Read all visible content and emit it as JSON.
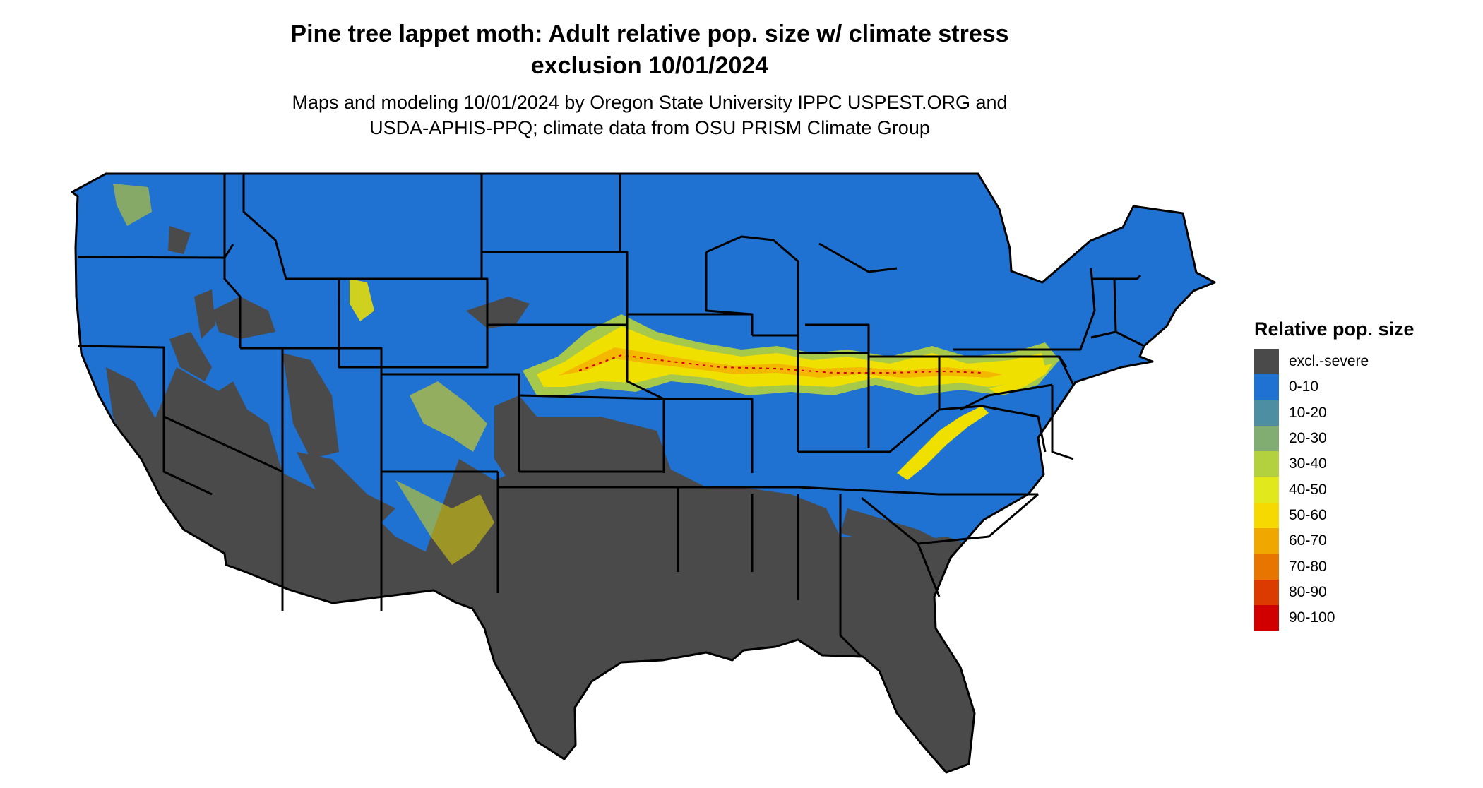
{
  "title": {
    "line1": "Pine tree lappet moth: Adult relative pop. size w/ climate stress",
    "line2": "exclusion 10/01/2024"
  },
  "subtitle": {
    "line1": "Maps and modeling 10/01/2024 by Oregon State University IPPC USPEST.ORG and",
    "line2": "USDA-APHIS-PPQ; climate data from OSU PRISM Climate Group"
  },
  "map": {
    "colors": {
      "excluded": "#4a4a4a",
      "low": "#1f72d1",
      "band_outer": "#b5d23c",
      "band_mid": "#f0e000",
      "band_core": "#f5b800",
      "band_hot": "#d40000",
      "borders": "#000000"
    }
  },
  "legend": {
    "title": "Relative pop. size",
    "items": [
      {
        "label": "excl.-severe",
        "color": "#4a4a4a"
      },
      {
        "label": "0-10",
        "color": "#1f72d1"
      },
      {
        "label": "10-20",
        "color": "#4d8ea3"
      },
      {
        "label": "20-30",
        "color": "#82ad72"
      },
      {
        "label": "30-40",
        "color": "#b3d13e"
      },
      {
        "label": "40-50",
        "color": "#e1e91c"
      },
      {
        "label": "50-60",
        "color": "#f5d900"
      },
      {
        "label": "60-70",
        "color": "#f0a700"
      },
      {
        "label": "70-80",
        "color": "#e77500"
      },
      {
        "label": "80-90",
        "color": "#db3b00"
      },
      {
        "label": "90-100",
        "color": "#d00000"
      }
    ]
  }
}
